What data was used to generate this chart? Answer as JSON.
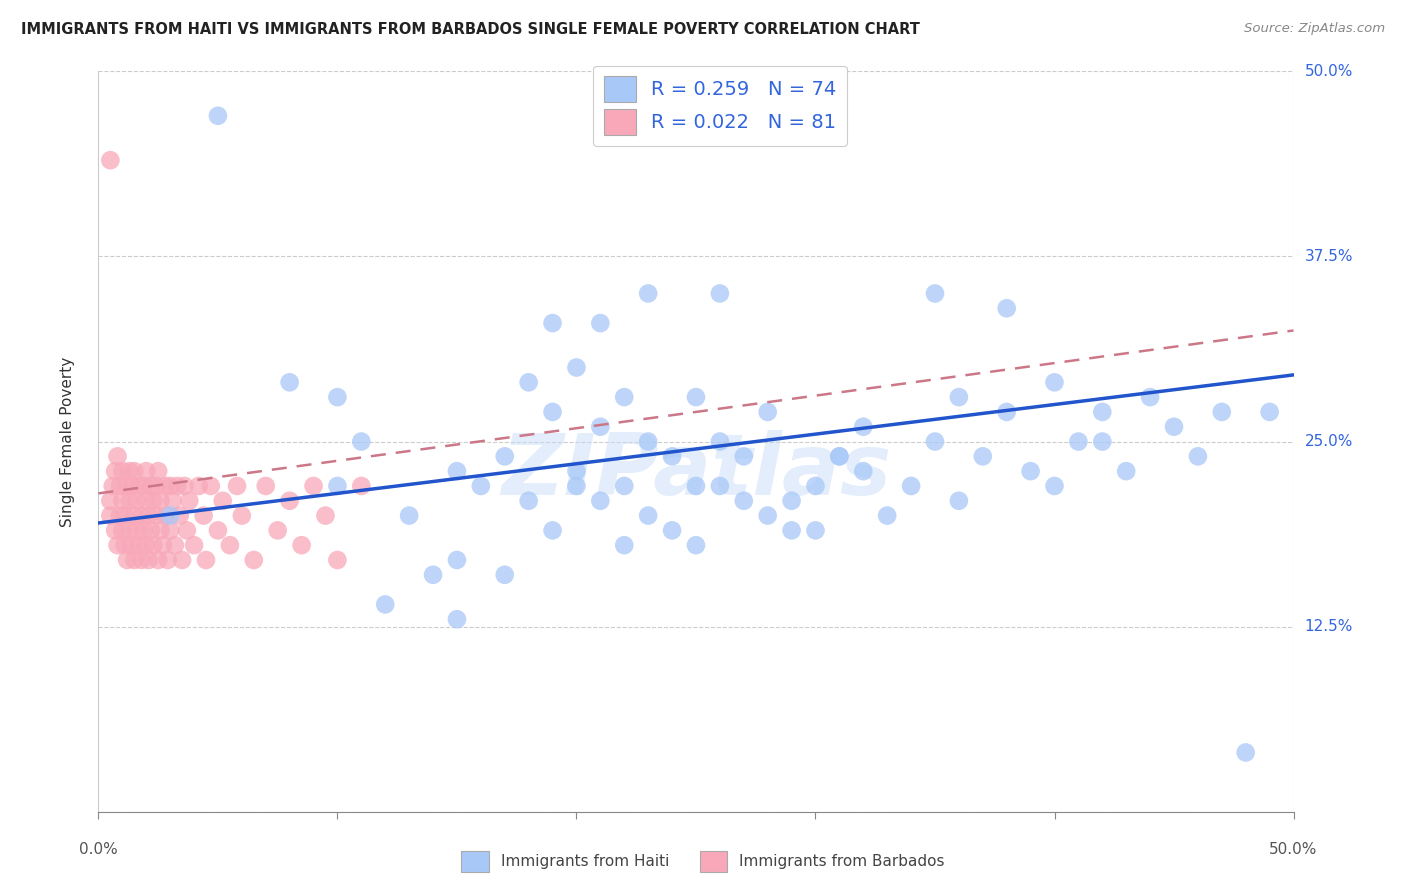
{
  "title": "IMMIGRANTS FROM HAITI VS IMMIGRANTS FROM BARBADOS SINGLE FEMALE POVERTY CORRELATION CHART",
  "source": "Source: ZipAtlas.com",
  "ylabel": "Single Female Poverty",
  "watermark": "ZIPatlas",
  "xlim": [
    0.0,
    0.5
  ],
  "ylim": [
    0.0,
    0.5
  ],
  "yticks": [
    0.0,
    0.125,
    0.25,
    0.375,
    0.5
  ],
  "haiti_R": 0.259,
  "haiti_N": 74,
  "barbados_R": 0.022,
  "barbados_N": 81,
  "haiti_color": "#a8c8f8",
  "barbados_color": "#f8a8b8",
  "haiti_line_color": "#2255cc",
  "barbados_line_color": "#cc7788",
  "legend_label_haiti": "Immigrants from Haiti",
  "legend_label_barbados": "Immigrants from Barbados",
  "background_color": "#ffffff",
  "grid_color": "#cccccc",
  "right_label_color": "#3366dd",
  "watermark_color": "#c8ddf8",
  "haiti_x": [
    0.03,
    0.05,
    0.08,
    0.1,
    0.1,
    0.11,
    0.12,
    0.13,
    0.14,
    0.15,
    0.15,
    0.16,
    0.17,
    0.17,
    0.18,
    0.18,
    0.19,
    0.19,
    0.2,
    0.2,
    0.2,
    0.21,
    0.21,
    0.22,
    0.22,
    0.22,
    0.23,
    0.23,
    0.24,
    0.24,
    0.25,
    0.25,
    0.25,
    0.26,
    0.26,
    0.27,
    0.27,
    0.28,
    0.28,
    0.29,
    0.3,
    0.3,
    0.31,
    0.32,
    0.32,
    0.33,
    0.34,
    0.35,
    0.36,
    0.36,
    0.37,
    0.38,
    0.39,
    0.4,
    0.4,
    0.41,
    0.42,
    0.43,
    0.44,
    0.45,
    0.46,
    0.47,
    0.48,
    0.49,
    0.19,
    0.21,
    0.23,
    0.29,
    0.31,
    0.35,
    0.38,
    0.42,
    0.15,
    0.26
  ],
  "haiti_y": [
    0.2,
    0.47,
    0.29,
    0.28,
    0.22,
    0.25,
    0.14,
    0.2,
    0.16,
    0.17,
    0.23,
    0.22,
    0.24,
    0.16,
    0.29,
    0.21,
    0.19,
    0.27,
    0.22,
    0.3,
    0.23,
    0.26,
    0.21,
    0.28,
    0.22,
    0.18,
    0.25,
    0.2,
    0.24,
    0.19,
    0.28,
    0.22,
    0.18,
    0.25,
    0.22,
    0.21,
    0.24,
    0.27,
    0.2,
    0.21,
    0.22,
    0.19,
    0.24,
    0.26,
    0.23,
    0.2,
    0.22,
    0.25,
    0.21,
    0.28,
    0.24,
    0.27,
    0.23,
    0.29,
    0.22,
    0.25,
    0.27,
    0.23,
    0.28,
    0.26,
    0.24,
    0.27,
    0.04,
    0.27,
    0.33,
    0.33,
    0.35,
    0.19,
    0.24,
    0.35,
    0.34,
    0.25,
    0.13,
    0.35
  ],
  "barbados_x": [
    0.005,
    0.005,
    0.006,
    0.007,
    0.007,
    0.008,
    0.008,
    0.009,
    0.009,
    0.01,
    0.01,
    0.01,
    0.011,
    0.011,
    0.012,
    0.012,
    0.013,
    0.013,
    0.013,
    0.014,
    0.014,
    0.015,
    0.015,
    0.015,
    0.016,
    0.016,
    0.017,
    0.017,
    0.018,
    0.018,
    0.019,
    0.019,
    0.02,
    0.02,
    0.02,
    0.021,
    0.021,
    0.022,
    0.022,
    0.023,
    0.023,
    0.024,
    0.024,
    0.025,
    0.025,
    0.026,
    0.026,
    0.027,
    0.028,
    0.028,
    0.029,
    0.03,
    0.03,
    0.031,
    0.032,
    0.033,
    0.034,
    0.035,
    0.036,
    0.037,
    0.038,
    0.04,
    0.042,
    0.044,
    0.045,
    0.047,
    0.05,
    0.052,
    0.055,
    0.058,
    0.06,
    0.065,
    0.07,
    0.075,
    0.08,
    0.085,
    0.09,
    0.095,
    0.1,
    0.11,
    0.005
  ],
  "barbados_y": [
    0.21,
    0.2,
    0.22,
    0.19,
    0.23,
    0.18,
    0.24,
    0.2,
    0.22,
    0.19,
    0.21,
    0.23,
    0.18,
    0.2,
    0.22,
    0.17,
    0.23,
    0.19,
    0.21,
    0.18,
    0.22,
    0.2,
    0.17,
    0.23,
    0.19,
    0.21,
    0.18,
    0.22,
    0.2,
    0.17,
    0.22,
    0.19,
    0.21,
    0.18,
    0.23,
    0.2,
    0.17,
    0.22,
    0.19,
    0.21,
    0.18,
    0.22,
    0.2,
    0.17,
    0.23,
    0.19,
    0.21,
    0.18,
    0.22,
    0.2,
    0.17,
    0.22,
    0.19,
    0.21,
    0.18,
    0.22,
    0.2,
    0.17,
    0.22,
    0.19,
    0.21,
    0.18,
    0.22,
    0.2,
    0.17,
    0.22,
    0.19,
    0.21,
    0.18,
    0.22,
    0.2,
    0.17,
    0.22,
    0.19,
    0.21,
    0.18,
    0.22,
    0.2,
    0.17,
    0.22,
    0.44
  ]
}
